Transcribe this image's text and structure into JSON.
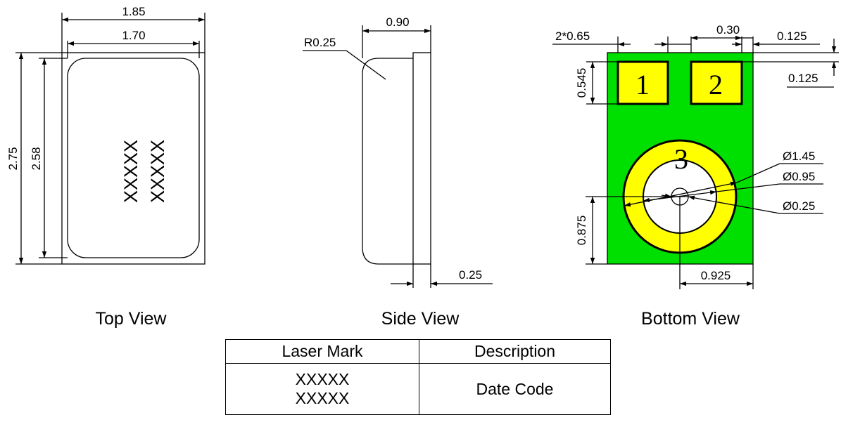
{
  "views": {
    "top": {
      "title": "Top View",
      "dim_width_outer": "1.85",
      "dim_width_inner": "1.70",
      "dim_height_outer": "2.75",
      "dim_height_inner": "2.58",
      "marking_line_1": "XXXXX",
      "marking_line_2": "XXXXX"
    },
    "side": {
      "title": "Side View",
      "dim_depth": "0.90",
      "dim_radius": "R0.25",
      "dim_flange": "0.25"
    },
    "bottom": {
      "title": "Bottom View",
      "dim_pad_width": "2*0.65",
      "dim_pad_gap": "0.30",
      "dim_edge_x": "0.125",
      "dim_edge_y": "0.125",
      "dim_pad_height": "0.545",
      "dim_ring_outer": "Ø1.45",
      "dim_ring_inner": "Ø0.95",
      "dim_hole": "Ø0.25",
      "dim_center_y": "0.875",
      "dim_center_x": "0.925",
      "pad_1": "1",
      "pad_2": "2",
      "pad_3": "3",
      "colors": {
        "board": "#00e000",
        "pad": "#ffff00"
      }
    }
  },
  "table": {
    "headers": [
      "Laser Mark",
      "Description"
    ],
    "marks": [
      "XXXXX",
      "XXXXX"
    ],
    "description": "Date Code"
  }
}
